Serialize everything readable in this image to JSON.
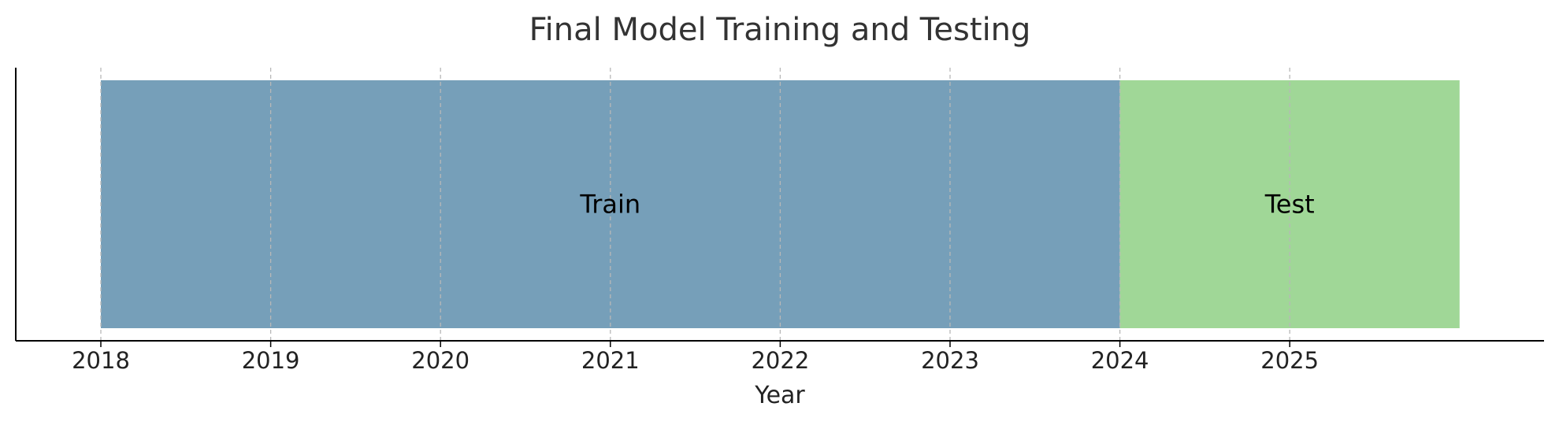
{
  "chart_data": {
    "type": "bar",
    "orientation": "horizontal",
    "title": "Final Model Training and Testing",
    "xlabel": "Year",
    "ylabel": "",
    "xlim": [
      2017.5,
      2026.5
    ],
    "x_ticks": [
      "2018",
      "2019",
      "2020",
      "2021",
      "2022",
      "2023",
      "2024",
      "2025"
    ],
    "grid": "vertical dashed",
    "series": [
      {
        "name": "Train",
        "start": 2018,
        "end": 2024,
        "color": "#769fb9"
      },
      {
        "name": "Test",
        "start": 2024,
        "end": 2026,
        "color": "#a0d797"
      }
    ]
  }
}
